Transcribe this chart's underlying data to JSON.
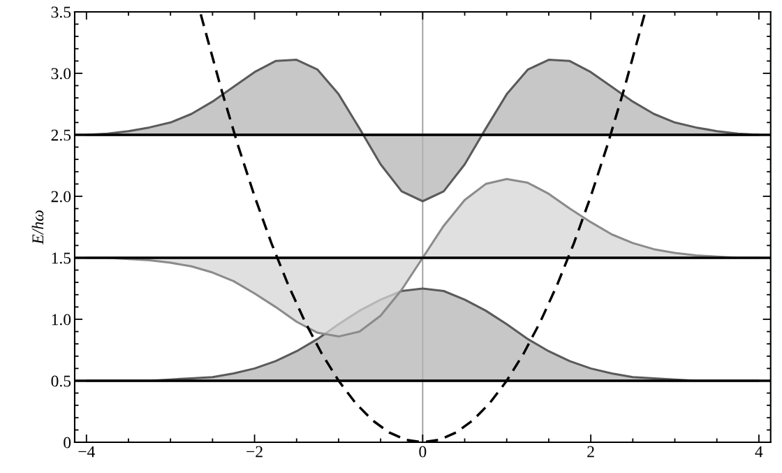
{
  "chart_data": {
    "type": "area",
    "ylabel": "E/hω",
    "xlim": [
      -4.14,
      4.14
    ],
    "ylim": [
      0,
      3.5
    ],
    "xticks": [
      {
        "value": -4,
        "label": "−4"
      },
      {
        "value": -2,
        "label": "−2"
      },
      0,
      2,
      4
    ],
    "yticks": [
      0,
      0.5,
      {
        "value": 1,
        "label": "1.0"
      },
      1.5,
      {
        "value": 2,
        "label": "2.0"
      },
      2.5,
      {
        "value": 3,
        "label": "3.0"
      },
      3.5
    ],
    "grid": false,
    "legend": false,
    "ref_lines": [
      {
        "axis": "x",
        "value": 0,
        "color": "#999999",
        "line_style": "solid"
      },
      {
        "axis": "y",
        "value": 0.5,
        "color": "#000000",
        "line_style": "solid"
      },
      {
        "axis": "y",
        "value": 1.5,
        "color": "#000000",
        "line_style": "solid"
      },
      {
        "axis": "y",
        "value": 2.5,
        "color": "#000000",
        "line_style": "solid"
      }
    ],
    "x": [
      -4,
      -3.75,
      -3.5,
      -3.25,
      -3,
      -2.75,
      -2.5,
      -2.25,
      -2,
      -1.75,
      -1.5,
      -1.25,
      -1,
      -0.75,
      -0.5,
      -0.25,
      0,
      0.25,
      0.5,
      0.75,
      1,
      1.25,
      1.5,
      1.75,
      2,
      2.25,
      2.5,
      2.75,
      3,
      3.25,
      3.5,
      3.75,
      4
    ],
    "series": [
      {
        "color": "#b4b4b4",
        "values": [
          0.5,
          0.5,
          0.5,
          0.5,
          0.51,
          0.52,
          0.53,
          0.56,
          0.6,
          0.66,
          0.74,
          0.84,
          0.96,
          1.07,
          1.16,
          1.23,
          1.25,
          1.23,
          1.16,
          1.07,
          0.96,
          0.84,
          0.74,
          0.66,
          0.6,
          0.56,
          0.53,
          0.52,
          0.51,
          0.5,
          0.5,
          0.5,
          0.5
        ]
      },
      {
        "color": "#d6d6d6",
        "values": [
          1.5,
          1.5,
          1.49,
          1.48,
          1.46,
          1.43,
          1.38,
          1.31,
          1.21,
          1.1,
          0.98,
          0.89,
          0.86,
          0.9,
          1.03,
          1.24,
          1.5,
          1.76,
          1.97,
          2.1,
          2.14,
          2.11,
          2.02,
          1.9,
          1.79,
          1.69,
          1.62,
          1.57,
          1.54,
          1.52,
          1.51,
          1.5,
          1.5
        ]
      },
      {
        "color": "#b4b4b4",
        "values": [
          2.5,
          2.51,
          2.53,
          2.56,
          2.6,
          2.67,
          2.77,
          2.89,
          3.01,
          3.1,
          3.11,
          3.03,
          2.83,
          2.55,
          2.26,
          2.04,
          1.96,
          2.04,
          2.26,
          2.55,
          2.83,
          3.03,
          3.11,
          3.1,
          3.01,
          2.89,
          2.77,
          2.67,
          2.6,
          2.56,
          2.53,
          2.51,
          2.5
        ]
      },
      {
        "type": "line",
        "color": "#000000",
        "line_style": "dashed",
        "x": [
          -2.64,
          -2.4,
          -2.2,
          -2,
          -1.8,
          -1.6,
          -1.4,
          -1.2,
          -1,
          -0.8,
          -0.6,
          -0.4,
          -0.2,
          0,
          0.2,
          0.4,
          0.6,
          0.8,
          1,
          1.2,
          1.4,
          1.6,
          1.8,
          2,
          2.2,
          2.4,
          2.64
        ],
        "values": [
          3.48,
          2.88,
          2.42,
          2,
          1.62,
          1.28,
          0.98,
          0.72,
          0.5,
          0.32,
          0.18,
          0.08,
          0.02,
          0,
          0.02,
          0.08,
          0.18,
          0.32,
          0.5,
          0.72,
          0.98,
          1.28,
          1.62,
          2,
          2.42,
          2.88,
          3.48
        ]
      }
    ]
  }
}
